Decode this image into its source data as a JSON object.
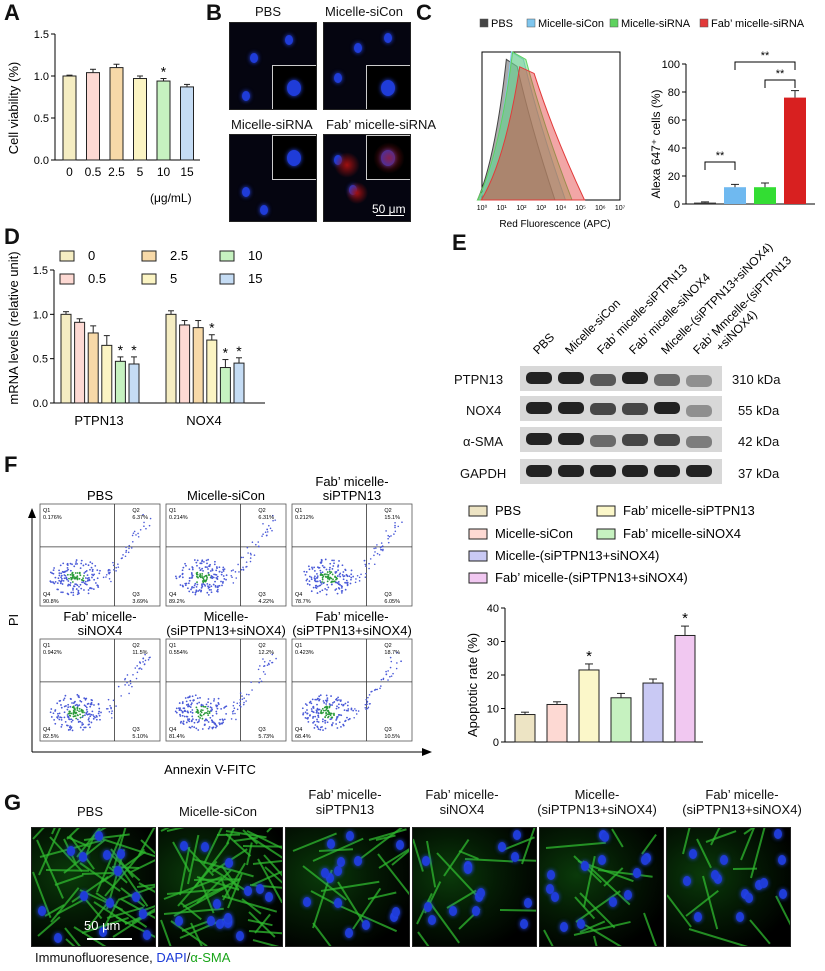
{
  "panels": {
    "A": {
      "label": "A"
    },
    "B": {
      "label": "B",
      "titles": [
        "PBS",
        "Micelle-siCon",
        "Micelle-siRNA",
        "Fab’ micelle-siRNA"
      ],
      "scale_bar": "50 μm"
    },
    "C": {
      "label": "C",
      "legend": [
        "PBS",
        "Micelle-siCon",
        "Micelle-siRNA",
        "Fab’ micelle-siRNA"
      ],
      "hist_xlabel": "Red Fluorescence (APC)",
      "sig": [
        "**",
        "**",
        "**"
      ]
    },
    "D": {
      "label": "D",
      "legend": [
        "0",
        "0.5",
        "2.5",
        "5",
        "10",
        "15"
      ]
    },
    "E": {
      "label": "E",
      "columns": [
        "PBS",
        "Micelle-siCon",
        "Fab’ micelle-siPTPN13",
        "Fab’ micelle-siNOX4",
        "Micelle-(siPTPN13+siNOX4)",
        "Fab’ Mmcelle-(siPTPN13 +siNOX4)"
      ],
      "rows": [
        {
          "name": "PTPN13",
          "size": "310 kDa"
        },
        {
          "name": "NOX4",
          "size": "55 kDa"
        },
        {
          "name": "α-SMA",
          "size": "42 kDa"
        },
        {
          "name": "GAPDH",
          "size": "37 kDa"
        }
      ],
      "legend": [
        "PBS",
        "Fab’ micelle-siPTPN13",
        "Micelle-siCon",
        "Fab’ micelle-siNOX4",
        "Micelle-(siPTPN13+siNOX4)",
        "Fab’ micelle-(siPTPN13+siNOX4)"
      ]
    },
    "F": {
      "label": "F",
      "titles": [
        "PBS",
        "Micelle-siCon",
        "Fab’ micelle-siPTPN13",
        "Fab’ micelle-siNOX4",
        "Micelle-(siPTPN13+siNOX4)",
        "Fab’ micelle-(siPTPN13+siNOX4)"
      ],
      "ylabel": "PI",
      "xlabel": "Annexin V-FITC",
      "quadrants": [
        {
          "q1": "0.176%",
          "q2": "6.37%",
          "q4": "90.8%",
          "q3": "3.69%"
        },
        {
          "q1": "0.214%",
          "q2": "6.31%",
          "q4": "89.2%",
          "q3": "4.22%"
        },
        {
          "q1": "0.212%",
          "q2": "15.1%",
          "q4": "78.7%",
          "q3": "6.05%"
        },
        {
          "q1": "0.942%",
          "q2": "11.5%",
          "q4": "82.5%",
          "q3": "5.10%"
        },
        {
          "q1": "0.554%",
          "q2": "12.2%",
          "q4": "81.4%",
          "q3": "5.73%"
        },
        {
          "q1": "0.423%",
          "q2": "18.7%",
          "q4": "68.4%",
          "q3": "10.5%"
        }
      ],
      "qlabels": [
        "Q1",
        "Q2",
        "Q3",
        "Q4"
      ]
    },
    "G": {
      "label": "G",
      "titles": [
        "PBS",
        "Micelle-siCon",
        "Fab’ micelle-siPTPN13",
        "Fab’ micelle-siNOX4",
        "Micelle-(siPTPN13+siNOX4)",
        "Fab’ micelle-(siPTPN13+siNOX4)"
      ],
      "scale_bar": "50 μm",
      "caption_prefix": "Immunofluoresence,",
      "caption_dapi": "DAPI",
      "caption_sep": "/",
      "caption_sma": "α-SMA"
    }
  },
  "chart_data": [
    {
      "id": "A",
      "type": "bar",
      "categories": [
        "0",
        "0.5",
        "2.5",
        "5",
        "10",
        "15"
      ],
      "values": [
        1.0,
        1.04,
        1.1,
        0.97,
        0.94,
        0.87
      ],
      "errors": [
        0.01,
        0.04,
        0.04,
        0.03,
        0.03,
        0.03
      ],
      "stars": [
        "",
        "",
        "",
        "",
        "*",
        ""
      ],
      "xunit": "(μg/mL)",
      "ylabel": "Cell viability (%)",
      "ylim": [
        0,
        1.5
      ],
      "yticks": [
        "0.0",
        "0.5",
        "1.0",
        "1.5"
      ],
      "colors": [
        "#f5edc2",
        "#fdd9d3",
        "#f7d9a8",
        "#fbf4c3",
        "#c6f2c0",
        "#c5dcf4"
      ]
    },
    {
      "id": "C-hist",
      "type": "area",
      "xticks": [
        "10⁰",
        "10¹",
        "10²",
        "10³",
        "10⁴",
        "10⁵",
        "10⁶",
        "10⁷"
      ],
      "series": [
        {
          "name": "PBS",
          "color": "#444444",
          "peak_x": 1.6,
          "peak_y": 0.95
        },
        {
          "name": "Micelle-siCon",
          "color": "#7fc6ee",
          "peak_x": 1.9,
          "peak_y": 1.0
        },
        {
          "name": "Micelle-siRNA",
          "color": "#5fd25f",
          "peak_x": 2.0,
          "peak_y": 1.0
        },
        {
          "name": "Fab’ micelle-siRNA",
          "color": "#e23a3a",
          "peak_x": 2.4,
          "peak_y": 0.9
        }
      ]
    },
    {
      "id": "C",
      "type": "bar",
      "categories": [
        "PBS",
        "Micelle-siCon",
        "Micelle-siRNA",
        "Fab’ micelle-siRNA"
      ],
      "values": [
        1,
        12,
        12,
        76
      ],
      "errors": [
        0.5,
        2,
        3,
        5
      ],
      "ylabel": "Alexa 647⁺ cells (%)",
      "ylim": [
        0,
        100
      ],
      "yticks": [
        "0",
        "20",
        "40",
        "60",
        "80",
        "100"
      ],
      "colors": [
        "#333333",
        "#6fb9f0",
        "#33dd33",
        "#d82020"
      ]
    },
    {
      "id": "D",
      "type": "bar",
      "categories": [
        "PTPN13",
        "NOX4"
      ],
      "series": [
        {
          "name": "0",
          "values": [
            1.0,
            1.0
          ],
          "errors": [
            0.03,
            0.04
          ],
          "stars": [
            "",
            ""
          ]
        },
        {
          "name": "0.5",
          "values": [
            0.91,
            0.88
          ],
          "errors": [
            0.04,
            0.05
          ],
          "stars": [
            "",
            ""
          ]
        },
        {
          "name": "2.5",
          "values": [
            0.79,
            0.85
          ],
          "errors": [
            0.08,
            0.08
          ],
          "stars": [
            "",
            ""
          ]
        },
        {
          "name": "5",
          "values": [
            0.65,
            0.71
          ],
          "errors": [
            0.11,
            0.06
          ],
          "stars": [
            "",
            "*"
          ]
        },
        {
          "name": "10",
          "values": [
            0.47,
            0.4
          ],
          "errors": [
            0.05,
            0.09
          ],
          "stars": [
            "*",
            "*"
          ]
        },
        {
          "name": "15",
          "values": [
            0.44,
            0.45
          ],
          "errors": [
            0.08,
            0.06
          ],
          "stars": [
            "*",
            "*"
          ]
        }
      ],
      "ylabel": "mRNA levels (relative unit)",
      "ylim": [
        0,
        1.5
      ],
      "yticks": [
        "0.0",
        "0.5",
        "1.0",
        "1.5"
      ],
      "colors": [
        "#f5edc2",
        "#fdd9d3",
        "#f7d9a8",
        "#fbf4c3",
        "#c6f2c0",
        "#c5dcf4"
      ]
    },
    {
      "id": "F",
      "type": "bar",
      "categories": [
        "PBS",
        "Micelle-siCon",
        "Fab’ micelle-siPTPN13",
        "Fab’ micelle-siNOX4",
        "Micelle-(siPTPN13+siNOX4)",
        "Fab’ micelle-(siPTPN13+siNOX4)"
      ],
      "values": [
        8.2,
        11.2,
        21.5,
        13.2,
        17.6,
        31.8
      ],
      "errors": [
        0.7,
        0.8,
        1.8,
        1.3,
        1.2,
        2.8
      ],
      "stars": [
        "",
        "",
        "*",
        "",
        "",
        "*"
      ],
      "ylabel": "Apoptotic rate (%)",
      "ylim": [
        0,
        40
      ],
      "yticks": [
        "0",
        "10",
        "20",
        "30",
        "40"
      ],
      "colors": [
        "#ede4c4",
        "#fdd9d3",
        "#fbf7c9",
        "#c6f2c0",
        "#c9c9f4",
        "#f1c8f1"
      ]
    }
  ]
}
